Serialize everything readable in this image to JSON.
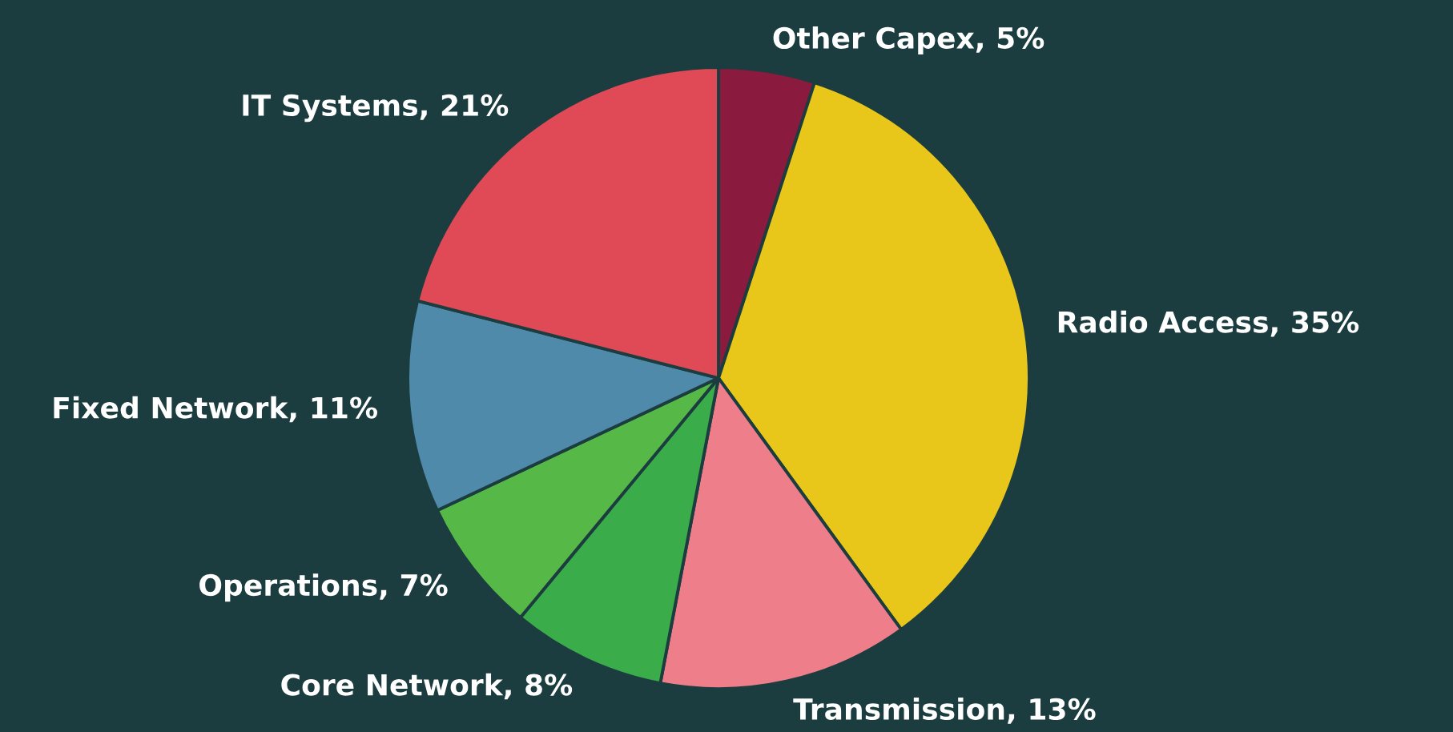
{
  "chart_data": {
    "type": "pie",
    "categories": [
      "Other Capex",
      "Radio Access",
      "Transmission",
      "Core Network",
      "Operations",
      "Fixed Network",
      "IT Systems"
    ],
    "values": [
      5,
      35,
      13,
      8,
      7,
      11,
      21
    ],
    "value_labels": [
      "5%",
      "35%",
      "13%",
      "8%",
      "7%",
      "11%",
      "21%"
    ],
    "colors": [
      "#8b1a3f",
      "#e8c61a",
      "#ee7f8a",
      "#3aac4a",
      "#56b947",
      "#4f8aab",
      "#e04a57"
    ],
    "legend": false
  }
}
